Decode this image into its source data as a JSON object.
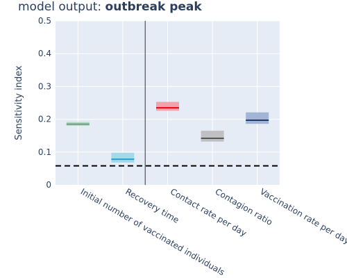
{
  "title_prefix": "model output: ",
  "title_bold": "outbreak peak",
  "chart_data": {
    "type": "box",
    "ylabel": "Sensitivity index",
    "ylim": [
      0,
      0.5
    ],
    "yticks": [
      0,
      0.1,
      0.2,
      0.3,
      0.4,
      0.5
    ],
    "ytick_labels": [
      "0",
      "0.1",
      "0.2",
      "0.3",
      "0.4",
      "0.5"
    ],
    "categories": [
      "Initial number of vaccinated individuals",
      "Recovery time",
      "Contact rate per day",
      "Contagion ratio",
      "Vaccination rate per day"
    ],
    "boxes": [
      {
        "q1": 0.18,
        "median": 0.185,
        "q3": 0.192,
        "fill": "#b7d9c7",
        "line": "#6b9a84"
      },
      {
        "q1": 0.068,
        "median": 0.078,
        "q3": 0.098,
        "fill": "#a7d8ea",
        "line": "#1aa6cf"
      },
      {
        "q1": 0.226,
        "median": 0.235,
        "q3": 0.253,
        "fill": "#f0a3ac",
        "line": "#f2000f"
      },
      {
        "q1": 0.132,
        "median": 0.142,
        "q3": 0.165,
        "fill": "#bfbfc4",
        "line": "#4f5a55"
      },
      {
        "q1": 0.186,
        "median": 0.197,
        "q3": 0.221,
        "fill": "#a3b5d4",
        "line": "#1e3a6e"
      }
    ],
    "threshold": 0.058,
    "separator_after_index": 1,
    "grid": true,
    "background": "#e5ecf6"
  }
}
